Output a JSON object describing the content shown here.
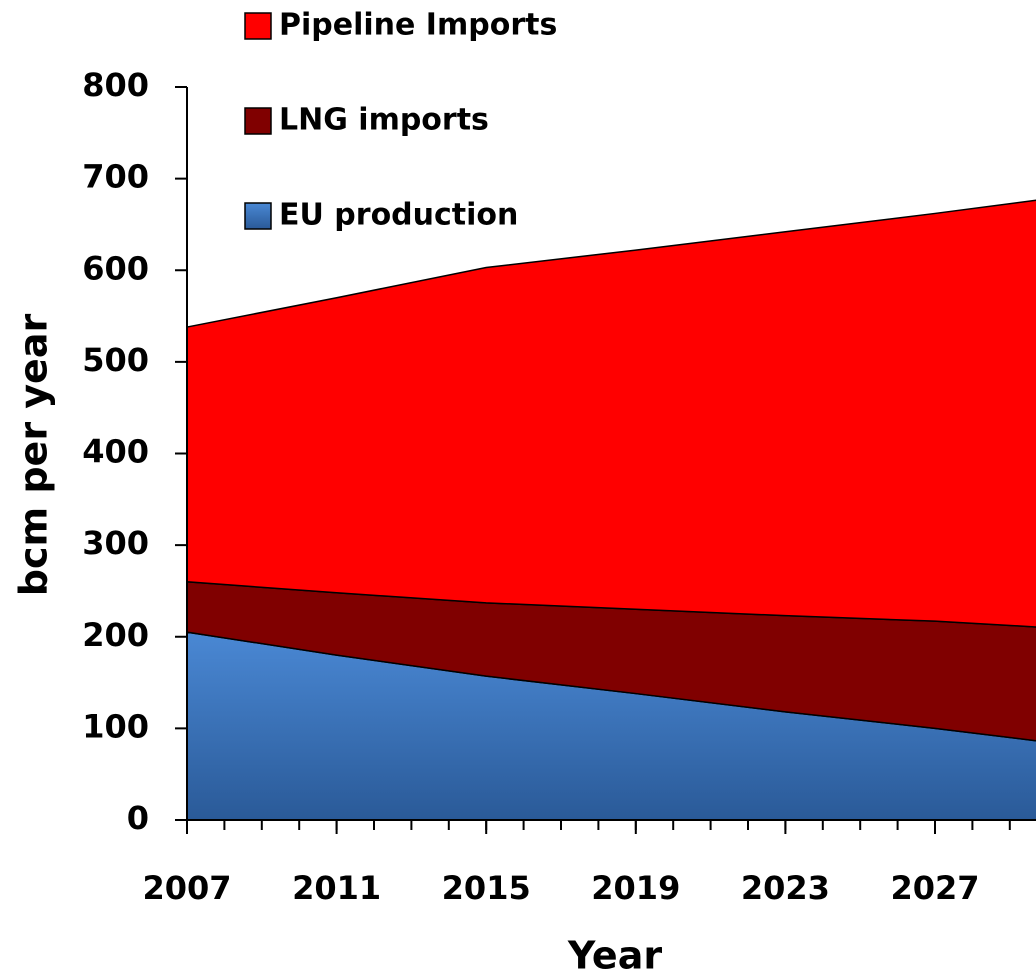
{
  "chart_data": {
    "type": "stacked-area",
    "x_label": "Year",
    "y_label": "bcm per year",
    "x": [
      2007,
      2011,
      2015,
      2019,
      2023,
      2027,
      2030
    ],
    "series": [
      {
        "name": "EU production",
        "color": "#3d78c4",
        "values": [
          205,
          180,
          157,
          138,
          118,
          100,
          85
        ]
      },
      {
        "name": "LNG imports",
        "color": "#800000",
        "values": [
          55,
          68,
          80,
          92,
          105,
          117,
          125
        ]
      },
      {
        "name": "Pipeline Imports",
        "color": "#ff0000",
        "values": [
          278,
          322,
          366,
          392,
          419,
          445,
          468
        ]
      }
    ],
    "xlim": [
      2007,
      2030
    ],
    "xticks": [
      2007,
      2011,
      2015,
      2019,
      2023,
      2027
    ],
    "ylim": [
      0,
      800
    ],
    "yticks": [
      0,
      100,
      200,
      300,
      400,
      500,
      600,
      700,
      800
    ],
    "legend": "top-left"
  }
}
